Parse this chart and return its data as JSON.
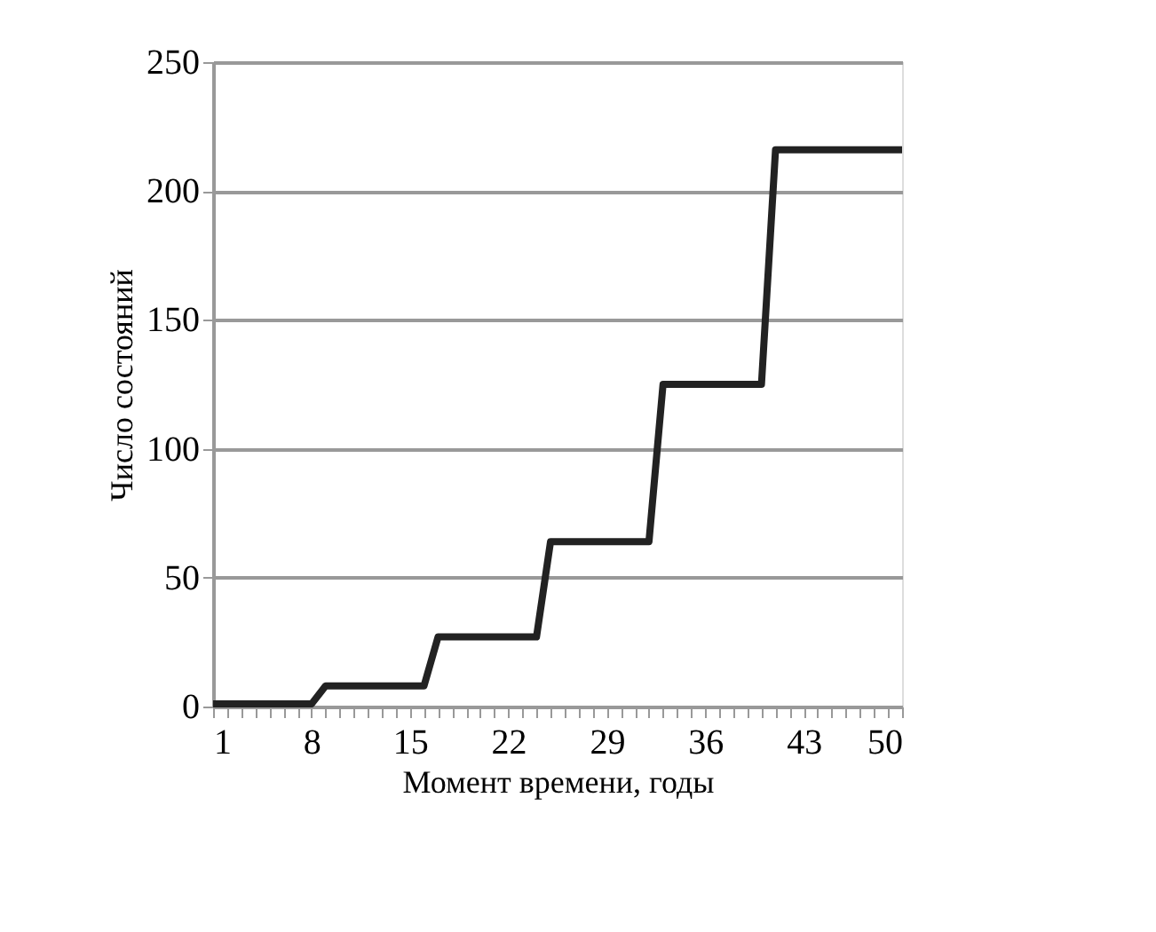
{
  "chart_data": {
    "type": "line",
    "xlabel": "Момент времени, годы",
    "ylabel": "Число состояний",
    "x": [
      1,
      2,
      3,
      4,
      5,
      6,
      7,
      8,
      9,
      10,
      11,
      12,
      13,
      14,
      15,
      16,
      17,
      18,
      19,
      20,
      21,
      22,
      23,
      24,
      25,
      26,
      27,
      28,
      29,
      30,
      31,
      32,
      33,
      34,
      35,
      36,
      37,
      38,
      39,
      40,
      41,
      42,
      43,
      44,
      45,
      46,
      47,
      48,
      49,
      50
    ],
    "series": [
      {
        "color": "#222222",
        "values": [
          1,
          1,
          1,
          1,
          1,
          1,
          1,
          1,
          8,
          8,
          8,
          8,
          8,
          8,
          8,
          8,
          27,
          27,
          27,
          27,
          27,
          27,
          27,
          27,
          64,
          64,
          64,
          64,
          64,
          64,
          64,
          64,
          125,
          125,
          125,
          125,
          125,
          125,
          125,
          125,
          216,
          216,
          216,
          216,
          216,
          216,
          216,
          216,
          216,
          216
        ]
      }
    ],
    "xlim": [
      1,
      50
    ],
    "xticks": [
      1,
      {
        "value": 2,
        "label": null
      },
      {
        "value": 3,
        "label": null
      },
      {
        "value": 4,
        "label": null
      },
      {
        "value": 5,
        "label": null
      },
      {
        "value": 6,
        "label": null
      },
      {
        "value": 7,
        "label": null
      },
      8,
      {
        "value": 9,
        "label": null
      },
      {
        "value": 10,
        "label": null
      },
      {
        "value": 11,
        "label": null
      },
      {
        "value": 12,
        "label": null
      },
      {
        "value": 13,
        "label": null
      },
      {
        "value": 14,
        "label": null
      },
      15,
      {
        "value": 16,
        "label": null
      },
      {
        "value": 17,
        "label": null
      },
      {
        "value": 18,
        "label": null
      },
      {
        "value": 19,
        "label": null
      },
      {
        "value": 20,
        "label": null
      },
      {
        "value": 21,
        "label": null
      },
      22,
      {
        "value": 23,
        "label": null
      },
      {
        "value": 24,
        "label": null
      },
      {
        "value": 25,
        "label": null
      },
      {
        "value": 26,
        "label": null
      },
      {
        "value": 27,
        "label": null
      },
      {
        "value": 28,
        "label": null
      },
      29,
      {
        "value": 30,
        "label": null
      },
      {
        "value": 31,
        "label": null
      },
      {
        "value": 32,
        "label": null
      },
      {
        "value": 33,
        "label": null
      },
      {
        "value": 34,
        "label": null
      },
      {
        "value": 35,
        "label": null
      },
      36,
      {
        "value": 37,
        "label": null
      },
      {
        "value": 38,
        "label": null
      },
      {
        "value": 39,
        "label": null
      },
      {
        "value": 40,
        "label": null
      },
      {
        "value": 41,
        "label": null
      },
      {
        "value": 42,
        "label": null
      },
      43,
      {
        "value": 44,
        "label": null
      },
      {
        "value": 45,
        "label": null
      },
      {
        "value": 46,
        "label": null
      },
      {
        "value": 47,
        "label": null
      },
      {
        "value": 48,
        "label": null
      },
      {
        "value": 49,
        "label": null
      },
      50
    ],
    "ylim": [
      0,
      250
    ],
    "yticks": [
      0,
      50,
      100,
      150,
      200,
      250
    ],
    "grid": "y",
    "legend": false,
    "marker": "none",
    "line_style": "solid"
  }
}
